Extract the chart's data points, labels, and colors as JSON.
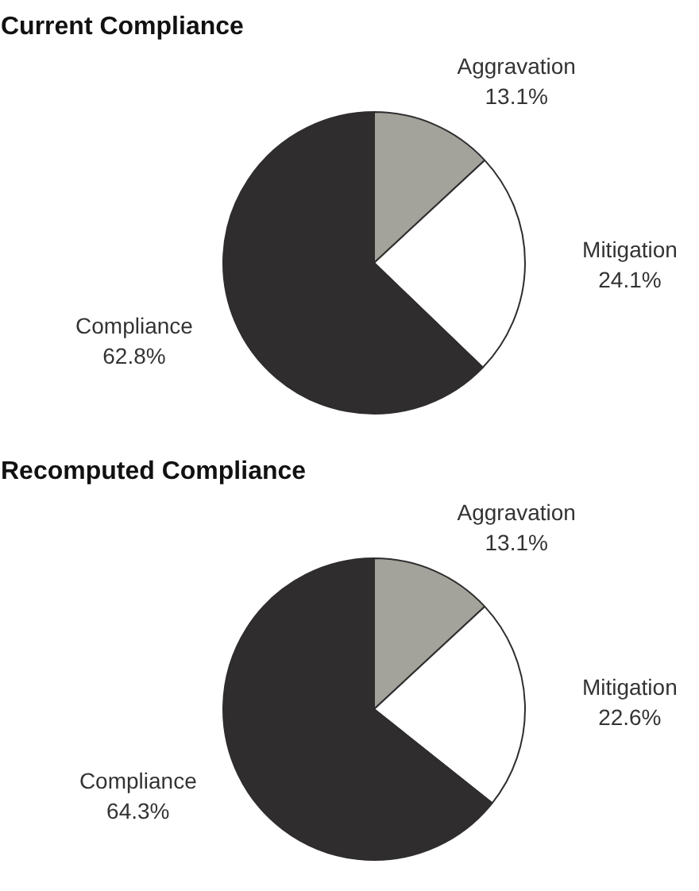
{
  "chart_data": [
    {
      "type": "pie",
      "title": "Current Compliance",
      "categories": [
        "Aggravation",
        "Mitigation",
        "Compliance"
      ],
      "values": [
        13.1,
        24.1,
        62.8
      ],
      "colors": [
        "#a3a39c",
        "#ffffff",
        "#2f2d2d"
      ],
      "value_labels": [
        "13.1%",
        "24.1%",
        "62.8%"
      ]
    },
    {
      "type": "pie",
      "title": "Recomputed Compliance",
      "categories": [
        "Aggravation",
        "Mitigation",
        "Compliance"
      ],
      "values": [
        13.1,
        22.6,
        64.3
      ],
      "colors": [
        "#a3a39c",
        "#ffffff",
        "#2f2d2d"
      ],
      "value_labels": [
        "13.1%",
        "22.6%",
        "64.3%"
      ]
    }
  ]
}
